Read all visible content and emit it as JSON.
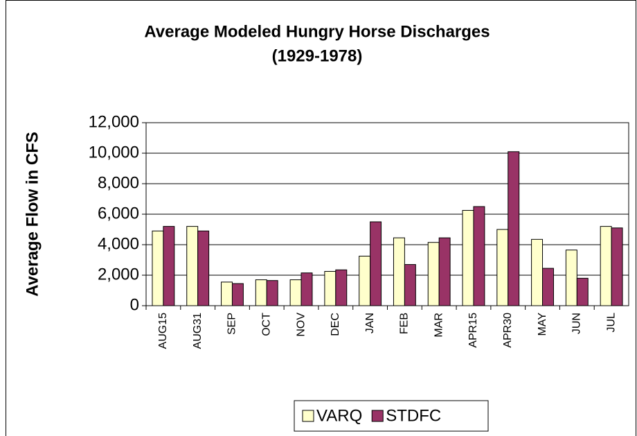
{
  "chart_data": {
    "type": "bar",
    "title": "Average Modeled Hungry Horse Discharges",
    "subtitle": "(1929-1978)",
    "y_label": "Average Flow in CFS",
    "categories": [
      "AUG15",
      "AUG31",
      "SEP",
      "OCT",
      "NOV",
      "DEC",
      "JAN",
      "FEB",
      "MAR",
      "APR15",
      "APR30",
      "MAY",
      "JUN",
      "JUL"
    ],
    "series": [
      {
        "name": "VARQ",
        "color": "#ffffcc",
        "values": [
          4900,
          5200,
          1550,
          1700,
          1700,
          2250,
          3250,
          4450,
          4150,
          6250,
          5000,
          4350,
          3650,
          5200
        ]
      },
      {
        "name": "STDFC",
        "color": "#993366",
        "values": [
          5200,
          4900,
          1450,
          1650,
          2150,
          2350,
          5500,
          2700,
          4450,
          6500,
          10100,
          2450,
          1800,
          5100
        ]
      }
    ],
    "ylim": [
      0,
      12000
    ],
    "yticks": [
      0,
      {
        "value": 2000,
        "label": "2,000"
      },
      {
        "value": 4000,
        "label": "4,000"
      },
      {
        "value": 6000,
        "label": "6,000"
      },
      {
        "value": 8000,
        "label": "8,000"
      },
      {
        "value": 10000,
        "label": "10,000"
      },
      {
        "value": 12000,
        "label": "12,000"
      }
    ],
    "grid": true,
    "legend": "bottom"
  }
}
